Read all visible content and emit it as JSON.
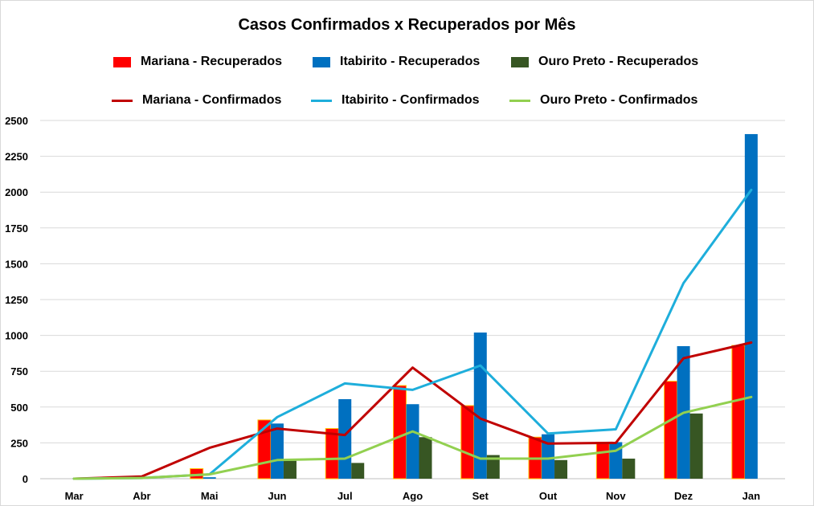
{
  "chart_data": {
    "type": "bar",
    "title": "Casos Confirmados x Recuperados por Mês",
    "xlabel": "",
    "ylabel": "",
    "ylim": [
      0,
      2500
    ],
    "yticks": [
      0,
      250,
      500,
      750,
      1000,
      1250,
      1500,
      1750,
      2000,
      2250,
      2500
    ],
    "grid": true,
    "legend_position": "top",
    "categories": [
      "Mar",
      "Abr",
      "Mai",
      "Jun",
      "Jul",
      "Ago",
      "Set",
      "Out",
      "Nov",
      "Dez",
      "Jan"
    ],
    "series": [
      {
        "name": "Mariana - Recuperados",
        "kind": "bar",
        "color": "#ff0000",
        "values": [
          0,
          0,
          70,
          410,
          350,
          650,
          510,
          290,
          255,
          680,
          930
        ]
      },
      {
        "name": "Itabirito - Recuperados",
        "kind": "bar",
        "color": "#0070c0",
        "values": [
          0,
          0,
          10,
          385,
          555,
          520,
          1020,
          310,
          255,
          925,
          2405
        ]
      },
      {
        "name": "Ouro Preto - Recuperados",
        "kind": "bar",
        "color": "#375623",
        "values": [
          0,
          0,
          0,
          125,
          110,
          290,
          165,
          130,
          140,
          455,
          0
        ]
      },
      {
        "name": "Mariana - Confirmados",
        "kind": "line",
        "color": "#c00000",
        "values": [
          0,
          15,
          215,
          350,
          305,
          775,
          420,
          245,
          250,
          840,
          950
        ]
      },
      {
        "name": "Itabirito - Confirmados",
        "kind": "line",
        "color": "#1eaedb",
        "values": [
          0,
          5,
          30,
          430,
          665,
          620,
          790,
          315,
          345,
          1365,
          2015
        ]
      },
      {
        "name": "Ouro Preto - Confirmados",
        "kind": "line",
        "color": "#92d050",
        "values": [
          0,
          5,
          30,
          130,
          140,
          330,
          140,
          140,
          195,
          460,
          570
        ]
      }
    ]
  }
}
